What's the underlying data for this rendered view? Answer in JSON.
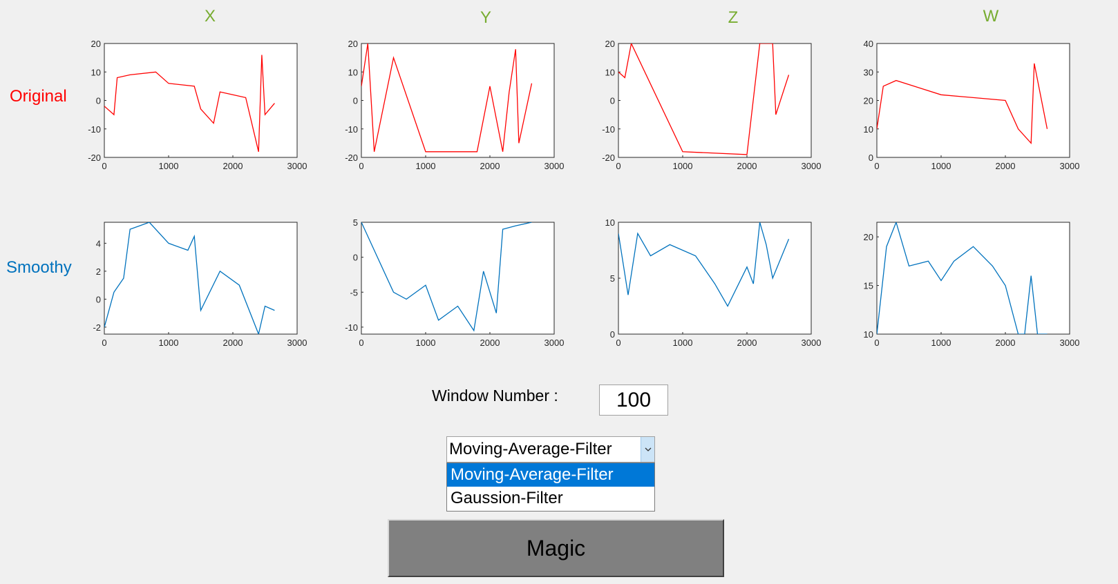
{
  "column_titles": [
    "X",
    "Y",
    "Z",
    "W"
  ],
  "row_titles": {
    "original": "Original",
    "smoothy": "Smoothy"
  },
  "colors": {
    "title_green": "#77ac30",
    "original": "#ff0000",
    "smoothy": "#0072bd",
    "selected": "#0078d7"
  },
  "controls": {
    "window_label": "Window Number :",
    "window_value": "100",
    "filter_selected": "Moving-Average-Filter",
    "filter_options": [
      "Moving-Average-Filter",
      "Gaussion-Filter"
    ],
    "magic_label": "Magic"
  },
  "chart_data": [
    {
      "type": "line",
      "row": "original",
      "col": "X",
      "xlim": [
        0,
        3000
      ],
      "ylim": [
        -20,
        20
      ],
      "xticks": [
        0,
        1000,
        2000,
        3000
      ],
      "yticks": [
        -20,
        -10,
        0,
        10,
        20
      ],
      "x": [
        0,
        150,
        200,
        400,
        800,
        1000,
        1400,
        1500,
        1700,
        1800,
        2000,
        2200,
        2400,
        2450,
        2500,
        2650
      ],
      "y": [
        -2,
        -5,
        8,
        9,
        10,
        6,
        5,
        -3,
        -8,
        3,
        2,
        1,
        -18,
        16,
        -5,
        -1
      ]
    },
    {
      "type": "line",
      "row": "original",
      "col": "Y",
      "xlim": [
        0,
        3000
      ],
      "ylim": [
        -20,
        20
      ],
      "xticks": [
        0,
        1000,
        2000,
        3000
      ],
      "yticks": [
        -20,
        -10,
        0,
        10,
        20
      ],
      "x": [
        0,
        100,
        200,
        500,
        1000,
        1500,
        1800,
        2000,
        2200,
        2300,
        2400,
        2450,
        2650
      ],
      "y": [
        5,
        20,
        -18,
        15,
        -18,
        -18,
        -18,
        5,
        -18,
        3,
        18,
        -15,
        6
      ]
    },
    {
      "type": "line",
      "row": "original",
      "col": "Z",
      "xlim": [
        0,
        3000
      ],
      "ylim": [
        -20,
        20
      ],
      "xticks": [
        0,
        1000,
        2000,
        3000
      ],
      "yticks": [
        -20,
        -10,
        0,
        10,
        20
      ],
      "x": [
        0,
        100,
        200,
        1000,
        2000,
        2200,
        2400,
        2450,
        2650
      ],
      "y": [
        10,
        8,
        20,
        -18,
        -19,
        20,
        20,
        -5,
        9
      ]
    },
    {
      "type": "line",
      "row": "original",
      "col": "W",
      "xlim": [
        0,
        3000
      ],
      "ylim": [
        0,
        40
      ],
      "xticks": [
        0,
        1000,
        2000,
        3000
      ],
      "yticks": [
        0,
        10,
        20,
        30,
        40
      ],
      "x": [
        0,
        100,
        300,
        1000,
        2000,
        2200,
        2400,
        2450,
        2650
      ],
      "y": [
        10,
        25,
        27,
        22,
        20,
        10,
        5,
        33,
        10
      ]
    },
    {
      "type": "line",
      "row": "smoothy",
      "col": "X",
      "xlim": [
        0,
        3000
      ],
      "ylim": [
        -2.5,
        5.5
      ],
      "xticks": [
        0,
        1000,
        2000,
        3000
      ],
      "yticks": [
        -2,
        0,
        2,
        4
      ],
      "x": [
        0,
        150,
        300,
        400,
        700,
        1000,
        1300,
        1400,
        1500,
        1800,
        2100,
        2400,
        2500,
        2650
      ],
      "y": [
        -2,
        0.5,
        1.5,
        5,
        5.5,
        4,
        3.5,
        4.5,
        -0.8,
        2,
        1,
        -2.5,
        -0.5,
        -0.8
      ]
    },
    {
      "type": "line",
      "row": "smoothy",
      "col": "Y",
      "xlim": [
        0,
        3000
      ],
      "ylim": [
        -11,
        5
      ],
      "xticks": [
        0,
        1000,
        2000,
        3000
      ],
      "yticks": [
        -10,
        -5,
        0,
        5
      ],
      "x": [
        0,
        200,
        500,
        700,
        1000,
        1200,
        1500,
        1750,
        1900,
        2100,
        2200,
        2400,
        2650
      ],
      "y": [
        5,
        1,
        -5,
        -6,
        -4,
        -9,
        -7,
        -10.5,
        -2,
        -8,
        4,
        4.5,
        5
      ]
    },
    {
      "type": "line",
      "row": "smoothy",
      "col": "Z",
      "xlim": [
        0,
        3000
      ],
      "ylim": [
        0,
        10
      ],
      "xticks": [
        0,
        1000,
        2000,
        3000
      ],
      "yticks": [
        0,
        5,
        10
      ],
      "x": [
        0,
        150,
        300,
        500,
        800,
        1200,
        1500,
        1700,
        2000,
        2100,
        2200,
        2300,
        2400,
        2650
      ],
      "y": [
        9,
        3.5,
        9,
        7,
        8,
        7,
        4.5,
        2.5,
        6,
        4.5,
        10,
        8,
        5,
        8.5
      ]
    },
    {
      "type": "line",
      "row": "smoothy",
      "col": "W",
      "xlim": [
        0,
        3000
      ],
      "ylim": [
        10,
        21.5
      ],
      "xticks": [
        0,
        1000,
        2000,
        3000
      ],
      "yticks": [
        10,
        15,
        20
      ],
      "x": [
        0,
        150,
        300,
        500,
        800,
        1000,
        1200,
        1500,
        1800,
        2000,
        2200,
        2300,
        2400,
        2500,
        2650
      ],
      "y": [
        10,
        19,
        21.5,
        17,
        17.5,
        15.5,
        17.5,
        19,
        17,
        15,
        10,
        10,
        16,
        10,
        10
      ]
    }
  ]
}
